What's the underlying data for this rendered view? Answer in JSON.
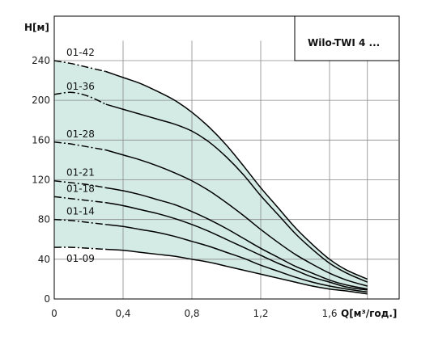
{
  "chart_data": {
    "type": "line",
    "title": "",
    "legend_text": "Wilo-TWI 4 ...",
    "legend_position": "top-right",
    "xlabel": "Q[м³/год.]",
    "ylabel": "H[м]",
    "xlim": [
      0,
      2.0
    ],
    "ylim": [
      0,
      260
    ],
    "x_ticks": [
      0,
      0.4,
      0.8,
      1.2,
      1.6
    ],
    "x_tick_labels": [
      "0",
      "0,4",
      "0,8",
      "1,2",
      "1,6"
    ],
    "y_ticks": [
      0,
      40,
      80,
      120,
      160,
      200,
      240
    ],
    "y_tick_labels": [
      "0",
      "40",
      "80",
      "120",
      "160",
      "200",
      "240"
    ],
    "grid": true,
    "fill_color": "#d3ebe4",
    "line_color": "#000000",
    "series": [
      {
        "name": "01-42",
        "dashed_end_x": 0.3,
        "x": [
          0,
          0.1,
          0.2,
          0.3,
          0.4,
          0.5,
          0.6,
          0.7,
          0.8,
          0.9,
          1.0,
          1.1,
          1.2,
          1.3,
          1.4,
          1.5,
          1.6,
          1.7,
          1.82
        ],
        "y": [
          240,
          237,
          233,
          229,
          223,
          217,
          209,
          200,
          188,
          173,
          155,
          134,
          112,
          92,
          72,
          55,
          40,
          29,
          20
        ]
      },
      {
        "name": "01-36",
        "dashed_end_x": 0.3,
        "x": [
          0,
          0.1,
          0.2,
          0.3,
          0.4,
          0.5,
          0.6,
          0.7,
          0.8,
          0.9,
          1.0,
          1.1,
          1.2,
          1.3,
          1.4,
          1.5,
          1.6,
          1.7,
          1.82
        ],
        "y": [
          206,
          208,
          204,
          196,
          191,
          186,
          181,
          176,
          169,
          158,
          143,
          125,
          104,
          85,
          66,
          50,
          36,
          26,
          17
        ]
      },
      {
        "name": "01-28",
        "dashed_end_x": 0.3,
        "x": [
          0,
          0.1,
          0.2,
          0.3,
          0.4,
          0.5,
          0.6,
          0.7,
          0.8,
          0.9,
          1.0,
          1.1,
          1.2,
          1.3,
          1.4,
          1.5,
          1.6,
          1.7,
          1.82
        ],
        "y": [
          158,
          156,
          153,
          150,
          145,
          140,
          134,
          127,
          119,
          109,
          97,
          84,
          70,
          57,
          45,
          35,
          26,
          19,
          13
        ]
      },
      {
        "name": "01-21",
        "dashed_end_x": 0.3,
        "x": [
          0,
          0.1,
          0.2,
          0.3,
          0.4,
          0.5,
          0.6,
          0.7,
          0.8,
          0.9,
          1.0,
          1.1,
          1.2,
          1.3,
          1.4,
          1.5,
          1.6,
          1.7,
          1.82
        ],
        "y": [
          119,
          117,
          115,
          112,
          109,
          105,
          100,
          95,
          88,
          80,
          71,
          61,
          51,
          42,
          33,
          26,
          19,
          14,
          10
        ]
      },
      {
        "name": "01-18",
        "dashed_end_x": 0.3,
        "x": [
          0,
          0.1,
          0.2,
          0.3,
          0.4,
          0.5,
          0.6,
          0.7,
          0.8,
          0.9,
          1.0,
          1.1,
          1.2,
          1.3,
          1.4,
          1.5,
          1.6,
          1.7,
          1.82
        ],
        "y": [
          103,
          101,
          99,
          97,
          94,
          90,
          86,
          81,
          75,
          68,
          60,
          52,
          44,
          36,
          29,
          22,
          17,
          12,
          9
        ]
      },
      {
        "name": "01-14",
        "dashed_end_x": 0.3,
        "x": [
          0,
          0.1,
          0.2,
          0.3,
          0.4,
          0.5,
          0.6,
          0.7,
          0.8,
          0.9,
          1.0,
          1.1,
          1.2,
          1.3,
          1.4,
          1.5,
          1.6,
          1.7,
          1.82
        ],
        "y": [
          80,
          79,
          77,
          75,
          73,
          70,
          67,
          63,
          58,
          53,
          47,
          41,
          34,
          28,
          22,
          17,
          13,
          10,
          7
        ]
      },
      {
        "name": "01-09",
        "dashed_end_x": 0.3,
        "x": [
          0,
          0.1,
          0.2,
          0.3,
          0.4,
          0.5,
          0.6,
          0.7,
          0.8,
          0.9,
          1.0,
          1.1,
          1.2,
          1.3,
          1.4,
          1.5,
          1.6,
          1.7,
          1.82
        ],
        "y": [
          52,
          52,
          51,
          50,
          49,
          47,
          45,
          43,
          40,
          37,
          33,
          29,
          25,
          21,
          17,
          13,
          10,
          8,
          5
        ]
      }
    ]
  }
}
